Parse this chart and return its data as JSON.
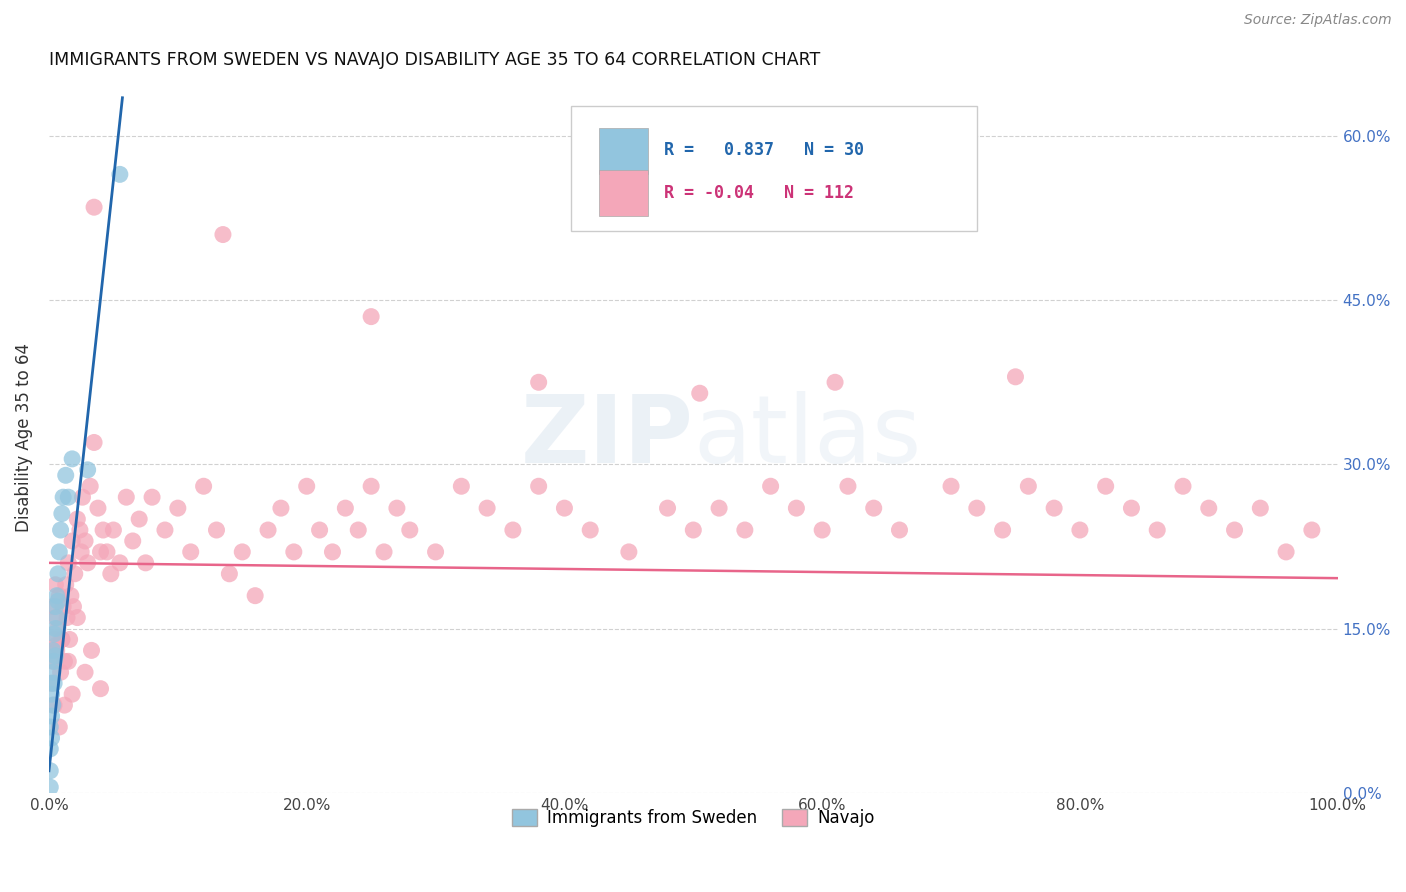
{
  "title": "IMMIGRANTS FROM SWEDEN VS NAVAJO DISABILITY AGE 35 TO 64 CORRELATION CHART",
  "source": "Source: ZipAtlas.com",
  "ylabel": "Disability Age 35 to 64",
  "legend_label_blue": "Immigrants from Sweden",
  "legend_label_pink": "Navajo",
  "r_blue": 0.837,
  "n_blue": 30,
  "r_pink": -0.04,
  "n_pink": 112,
  "xlim": [
    0.0,
    1.0
  ],
  "ylim": [
    0.0,
    0.65
  ],
  "xticks": [
    0.0,
    0.2,
    0.4,
    0.6,
    0.8,
    1.0
  ],
  "xtick_labels": [
    "0.0%",
    "20.0%",
    "40.0%",
    "60.0%",
    "80.0%",
    "100.0%"
  ],
  "yticks": [
    0.0,
    0.15,
    0.3,
    0.45,
    0.6
  ],
  "ytick_labels_right": [
    "0.0%",
    "15.0%",
    "30.0%",
    "45.0%",
    "60.0%"
  ],
  "color_blue": "#92c5de",
  "color_pink": "#f4a7b9",
  "line_blue": "#2166ac",
  "line_pink": "#e8658a",
  "background": "#ffffff",
  "grid_color": "#cccccc",
  "blue_x": [
    0.001,
    0.001,
    0.001,
    0.001,
    0.002,
    0.002,
    0.002,
    0.002,
    0.003,
    0.003,
    0.003,
    0.004,
    0.004,
    0.004,
    0.005,
    0.005,
    0.005,
    0.006,
    0.006,
    0.007,
    0.007,
    0.008,
    0.009,
    0.01,
    0.011,
    0.013,
    0.015,
    0.018,
    0.03,
    0.055
  ],
  "blue_y": [
    0.005,
    0.02,
    0.04,
    0.06,
    0.05,
    0.07,
    0.09,
    0.1,
    0.08,
    0.11,
    0.13,
    0.1,
    0.12,
    0.145,
    0.125,
    0.15,
    0.17,
    0.16,
    0.18,
    0.175,
    0.2,
    0.22,
    0.24,
    0.255,
    0.27,
    0.29,
    0.27,
    0.305,
    0.295,
    0.565
  ],
  "pink_x": [
    0.003,
    0.004,
    0.005,
    0.005,
    0.006,
    0.007,
    0.008,
    0.009,
    0.01,
    0.011,
    0.012,
    0.013,
    0.014,
    0.015,
    0.016,
    0.017,
    0.018,
    0.019,
    0.02,
    0.022,
    0.024,
    0.025,
    0.026,
    0.028,
    0.03,
    0.032,
    0.035,
    0.038,
    0.04,
    0.042,
    0.045,
    0.048,
    0.05,
    0.055,
    0.06,
    0.065,
    0.07,
    0.075,
    0.08,
    0.09,
    0.1,
    0.11,
    0.12,
    0.13,
    0.14,
    0.15,
    0.16,
    0.17,
    0.18,
    0.19,
    0.2,
    0.21,
    0.22,
    0.23,
    0.24,
    0.25,
    0.26,
    0.27,
    0.28,
    0.3,
    0.32,
    0.34,
    0.36,
    0.38,
    0.4,
    0.42,
    0.45,
    0.48,
    0.5,
    0.52,
    0.54,
    0.56,
    0.58,
    0.6,
    0.62,
    0.64,
    0.66,
    0.7,
    0.72,
    0.74,
    0.76,
    0.78,
    0.8,
    0.82,
    0.84,
    0.86,
    0.88,
    0.9,
    0.92,
    0.94,
    0.96,
    0.98,
    0.003,
    0.035,
    0.135,
    0.25,
    0.38,
    0.505,
    0.61,
    0.75,
    0.002,
    0.004,
    0.006,
    0.008,
    0.01,
    0.012,
    0.015,
    0.018,
    0.022,
    0.028,
    0.033,
    0.04
  ],
  "pink_y": [
    0.17,
    0.14,
    0.16,
    0.19,
    0.13,
    0.15,
    0.18,
    0.11,
    0.14,
    0.17,
    0.12,
    0.19,
    0.16,
    0.21,
    0.14,
    0.18,
    0.23,
    0.17,
    0.2,
    0.25,
    0.24,
    0.22,
    0.27,
    0.23,
    0.21,
    0.28,
    0.32,
    0.26,
    0.22,
    0.24,
    0.22,
    0.2,
    0.24,
    0.21,
    0.27,
    0.23,
    0.25,
    0.21,
    0.27,
    0.24,
    0.26,
    0.22,
    0.28,
    0.24,
    0.2,
    0.22,
    0.18,
    0.24,
    0.26,
    0.22,
    0.28,
    0.24,
    0.22,
    0.26,
    0.24,
    0.28,
    0.22,
    0.26,
    0.24,
    0.22,
    0.28,
    0.26,
    0.24,
    0.28,
    0.26,
    0.24,
    0.22,
    0.26,
    0.24,
    0.26,
    0.24,
    0.28,
    0.26,
    0.24,
    0.28,
    0.26,
    0.24,
    0.28,
    0.26,
    0.24,
    0.28,
    0.26,
    0.24,
    0.28,
    0.26,
    0.24,
    0.28,
    0.26,
    0.24,
    0.26,
    0.22,
    0.24,
    0.12,
    0.535,
    0.51,
    0.435,
    0.375,
    0.365,
    0.375,
    0.38,
    0.1,
    0.08,
    0.135,
    0.06,
    0.14,
    0.08,
    0.12,
    0.09,
    0.16,
    0.11,
    0.13,
    0.095
  ]
}
